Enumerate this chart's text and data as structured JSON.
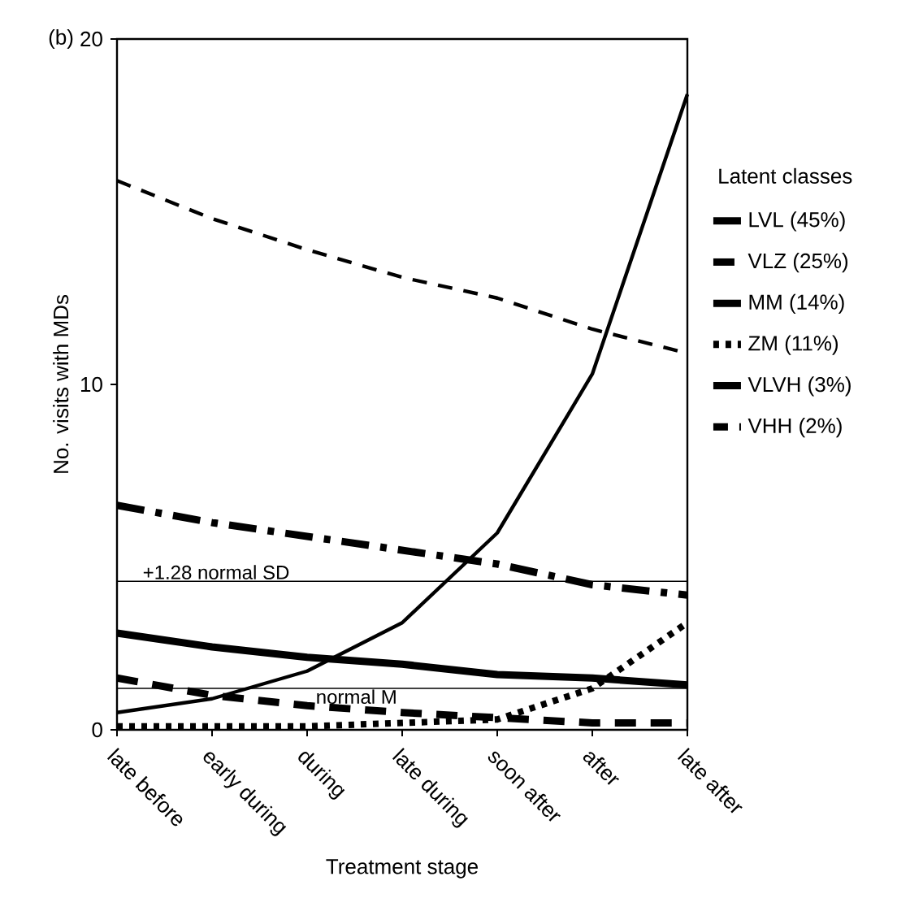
{
  "chart_data": {
    "type": "line",
    "title": "(b)",
    "xlabel": "Treatment stage",
    "ylabel": "No. visits with MDs",
    "legend_title": "Latent classes",
    "categories": [
      "late before",
      "early during",
      "during",
      "late during",
      "soon after",
      "after",
      "late after"
    ],
    "series": [
      {
        "name": "LVL  (45%)",
        "color": "#000000",
        "line_style": "solid",
        "values": [
          2.8,
          2.4,
          2.1,
          1.9,
          1.6,
          1.5,
          1.3
        ]
      },
      {
        "name": "VLZ (25%)",
        "color": "#000000",
        "line_style": "dashed",
        "values": [
          1.5,
          1.0,
          0.7,
          0.5,
          0.35,
          0.2,
          0.2
        ]
      },
      {
        "name": "MM (14%)",
        "color": "#000000",
        "line_style": "dashdot",
        "values": [
          6.5,
          6.0,
          5.6,
          5.2,
          4.8,
          4.2,
          3.9
        ]
      },
      {
        "name": "ZM (11%)",
        "color": "#000000",
        "line_style": "dotted",
        "values": [
          0.1,
          0.1,
          0.1,
          0.2,
          0.3,
          1.2,
          3.1
        ]
      },
      {
        "name": "VLVH (3%)",
        "color": "#000000",
        "line_style": "solid",
        "values": [
          0.5,
          0.9,
          1.7,
          3.1,
          5.7,
          10.3,
          18.4
        ]
      },
      {
        "name": "VHH (2%)",
        "color": "#000000",
        "line_style": "dashed",
        "values": [
          15.9,
          14.8,
          13.9,
          13.1,
          12.5,
          11.6,
          10.9
        ]
      }
    ],
    "ylim": [
      0,
      20
    ],
    "yticks": [
      0,
      10,
      20
    ],
    "grid": false,
    "legend": "right",
    "marker": "none",
    "ref_lines": [
      {
        "axis": "y",
        "value": 4.3,
        "label": "+1.28 normal SD",
        "color": "#000000"
      },
      {
        "axis": "y",
        "value": 1.2,
        "label": "normal M",
        "color": "#000000"
      }
    ]
  }
}
